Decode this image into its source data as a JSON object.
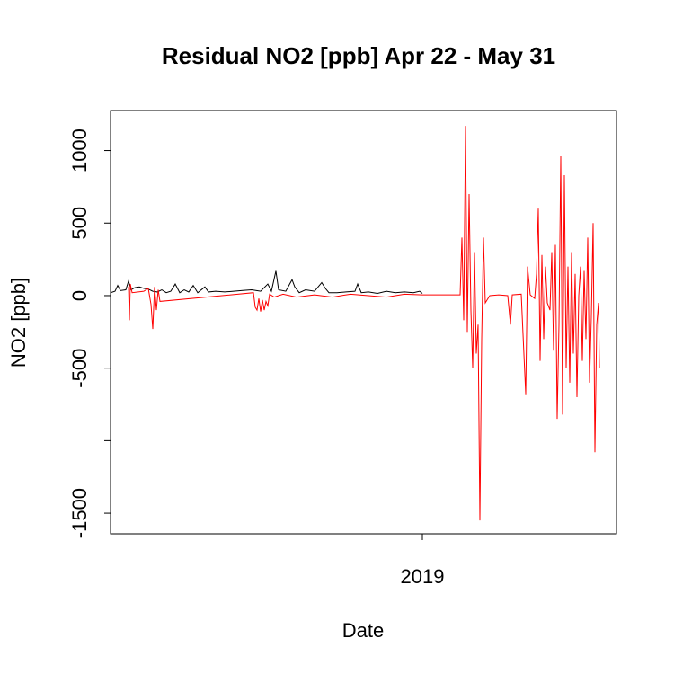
{
  "chart_data": {
    "type": "line",
    "title": "Residual NO2 [ppb] Apr 22 - May 31",
    "x_label": "Date",
    "y_label": "NO2 [ppb]",
    "xlim": [
      2017.959,
      2019.648
    ],
    "xticks": [
      2019
    ],
    "ylim": [
      -1642,
      1276
    ],
    "yticks": [
      -1500,
      {
        "value": -1000,
        "label": null
      },
      -500,
      0,
      500,
      1000
    ],
    "series": [
      {
        "name": null,
        "color": "#000000",
        "x": [
          2017.959,
          2017.974,
          2017.983,
          2017.992,
          2018.01,
          2018.019,
          2018.028,
          2018.04,
          2018.055,
          2018.07,
          2018.085,
          2018.1,
          2018.115,
          2018.13,
          2018.145,
          2018.16,
          2018.175,
          2018.19,
          2018.205,
          2018.22,
          2018.235,
          2018.25,
          2018.265,
          2018.274,
          2018.286,
          2018.31,
          2018.34,
          2018.37,
          2018.4,
          2018.43,
          2018.46,
          2018.484,
          2018.496,
          2018.511,
          2018.52,
          2018.544,
          2018.565,
          2018.574,
          2018.589,
          2018.61,
          2018.64,
          2018.664,
          2018.676,
          2018.688,
          2018.715,
          2018.745,
          2018.775,
          2018.784,
          2018.796,
          2018.82,
          2018.85,
          2018.88,
          2018.91,
          2018.94,
          2018.97,
          2018.991,
          2019.0
        ],
        "values": [
          20,
          30,
          70,
          35,
          40,
          100,
          40,
          55,
          60,
          50,
          45,
          30,
          25,
          40,
          20,
          30,
          80,
          20,
          40,
          25,
          70,
          20,
          45,
          60,
          25,
          30,
          25,
          30,
          35,
          40,
          30,
          80,
          30,
          170,
          40,
          30,
          110,
          60,
          20,
          40,
          30,
          90,
          50,
          20,
          20,
          25,
          30,
          80,
          20,
          25,
          15,
          30,
          20,
          25,
          20,
          30,
          15
        ]
      },
      {
        "name": null,
        "color": "#ff0000",
        "x": [
          2018.019,
          2018.022,
          2018.025,
          2018.031,
          2018.07,
          2018.085,
          2018.094,
          2018.1,
          2018.106,
          2018.112,
          2018.118,
          2018.124,
          2018.436,
          2018.442,
          2018.448,
          2018.454,
          2018.46,
          2018.466,
          2018.472,
          2018.478,
          2018.484,
          2018.49,
          2018.505,
          2018.535,
          2018.58,
          2018.64,
          2018.7,
          2018.76,
          2018.82,
          2018.88,
          2018.94,
          2019.0,
          2019.06,
          2019.126,
          2019.132,
          2019.138,
          2019.144,
          2019.15,
          2019.156,
          2019.162,
          2019.168,
          2019.174,
          2019.18,
          2019.186,
          2019.192,
          2019.198,
          2019.204,
          2019.21,
          2019.225,
          2019.255,
          2019.285,
          2019.294,
          2019.3,
          2019.33,
          2019.345,
          2019.351,
          2019.36,
          2019.375,
          2019.381,
          2019.387,
          2019.393,
          2019.399,
          2019.405,
          2019.411,
          2019.417,
          2019.426,
          2019.432,
          2019.438,
          2019.444,
          2019.45,
          2019.456,
          2019.462,
          2019.468,
          2019.474,
          2019.48,
          2019.486,
          2019.492,
          2019.498,
          2019.504,
          2019.51,
          2019.516,
          2019.522,
          2019.528,
          2019.534,
          2019.54,
          2019.546,
          2019.552,
          2019.558,
          2019.564,
          2019.57,
          2019.576,
          2019.582,
          2019.588,
          2019.591
        ],
        "values": [
          60,
          -170,
          80,
          20,
          30,
          50,
          -60,
          -230,
          60,
          -100,
          40,
          -40,
          20,
          -80,
          -100,
          -20,
          -110,
          -30,
          -100,
          -40,
          -70,
          10,
          -10,
          10,
          -10,
          5,
          -10,
          10,
          0,
          -10,
          10,
          5,
          5,
          5,
          400,
          -170,
          1170,
          -250,
          700,
          -100,
          -500,
          300,
          -400,
          -200,
          -1550,
          -300,
          400,
          -50,
          0,
          5,
          0,
          -200,
          5,
          10,
          -680,
          200,
          5,
          -20,
          150,
          600,
          -450,
          280,
          -300,
          200,
          -50,
          -100,
          300,
          -380,
          350,
          -850,
          -200,
          960,
          -820,
          830,
          -500,
          200,
          -600,
          300,
          -400,
          150,
          -700,
          0,
          200,
          -450,
          170,
          -300,
          400,
          -600,
          -150,
          500,
          -1080,
          -200,
          -50,
          -500
        ]
      }
    ]
  }
}
